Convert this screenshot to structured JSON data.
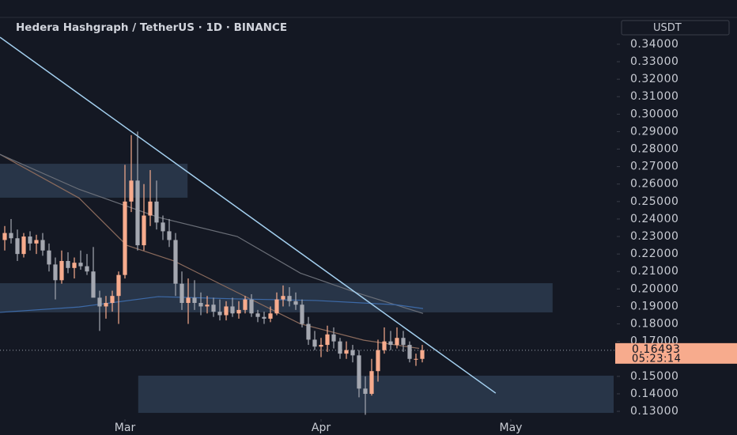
{
  "chart_data": {
    "type": "candlestick",
    "title": "Hedera Hashgraph / TetherUS · 1D · BINANCE",
    "currency": "USDT",
    "up_color": "#f7ab8d",
    "down_color": "#a4a7b0",
    "x": [
      -19,
      -18,
      -17,
      -16,
      -15,
      -14,
      -13,
      -12,
      -11,
      -10,
      -9,
      -8,
      -7,
      -6,
      -5,
      -4,
      -3,
      -2,
      -1,
      0,
      1,
      2,
      3,
      4,
      5,
      6,
      7,
      8,
      9,
      10,
      11,
      12,
      13,
      14,
      15,
      16,
      17,
      18,
      19,
      20,
      21,
      22,
      23,
      24,
      25,
      26,
      27,
      28,
      29,
      30,
      31,
      32,
      33,
      34,
      35,
      36,
      37,
      38,
      39,
      40,
      41,
      42,
      43,
      44,
      45,
      46,
      47
    ],
    "series": [
      {
        "name": "open",
        "values": [
          0.228,
          0.232,
          0.229,
          0.22,
          0.23,
          0.226,
          0.228,
          0.222,
          0.214,
          0.205,
          0.216,
          0.212,
          0.215,
          0.213,
          0.21,
          0.195,
          0.19,
          0.192,
          0.196,
          0.208,
          0.25,
          0.262,
          0.225,
          0.242,
          0.25,
          0.238,
          0.233,
          0.228,
          0.203,
          0.192,
          0.195,
          0.192,
          0.19,
          0.191,
          0.187,
          0.185,
          0.19,
          0.186,
          0.188,
          0.194,
          0.186,
          0.184,
          0.183,
          0.186,
          0.194,
          0.196,
          0.193,
          0.191,
          0.18,
          0.171,
          0.167,
          0.168,
          0.174,
          0.17,
          0.163,
          0.165,
          0.162,
          0.143,
          0.14,
          0.153,
          0.165,
          0.17,
          0.168,
          0.172,
          0.168,
          0.16,
          0.16
        ]
      },
      {
        "name": "high",
        "values": [
          0.236,
          0.24,
          0.234,
          0.232,
          0.233,
          0.231,
          0.232,
          0.226,
          0.218,
          0.222,
          0.221,
          0.218,
          0.222,
          0.22,
          0.224,
          0.199,
          0.196,
          0.199,
          0.21,
          0.271,
          0.288,
          0.29,
          0.26,
          0.268,
          0.262,
          0.242,
          0.24,
          0.232,
          0.21,
          0.206,
          0.205,
          0.198,
          0.196,
          0.195,
          0.194,
          0.193,
          0.195,
          0.193,
          0.196,
          0.197,
          0.188,
          0.187,
          0.19,
          0.198,
          0.202,
          0.201,
          0.198,
          0.194,
          0.184,
          0.176,
          0.172,
          0.179,
          0.178,
          0.172,
          0.17,
          0.168,
          0.165,
          0.15,
          0.16,
          0.171,
          0.178,
          0.176,
          0.178,
          0.176,
          0.17,
          0.163,
          0.168
        ]
      },
      {
        "name": "low",
        "values": [
          0.222,
          0.226,
          0.216,
          0.218,
          0.222,
          0.22,
          0.219,
          0.21,
          0.194,
          0.203,
          0.209,
          0.206,
          0.211,
          0.208,
          0.2,
          0.176,
          0.183,
          0.187,
          0.18,
          0.206,
          0.244,
          0.222,
          0.222,
          0.236,
          0.234,
          0.228,
          0.224,
          0.196,
          0.188,
          0.18,
          0.188,
          0.185,
          0.186,
          0.184,
          0.182,
          0.182,
          0.184,
          0.183,
          0.186,
          0.184,
          0.181,
          0.18,
          0.181,
          0.185,
          0.19,
          0.19,
          0.188,
          0.178,
          0.168,
          0.165,
          0.161,
          0.164,
          0.166,
          0.16,
          0.16,
          0.158,
          0.138,
          0.128,
          0.139,
          0.147,
          0.163,
          0.165,
          0.166,
          0.164,
          0.158,
          0.156,
          0.158
        ]
      },
      {
        "name": "close",
        "values": [
          0.232,
          0.229,
          0.22,
          0.23,
          0.226,
          0.228,
          0.222,
          0.214,
          0.205,
          0.216,
          0.212,
          0.215,
          0.213,
          0.21,
          0.195,
          0.19,
          0.192,
          0.196,
          0.208,
          0.25,
          0.262,
          0.225,
          0.242,
          0.25,
          0.238,
          0.233,
          0.228,
          0.203,
          0.192,
          0.195,
          0.192,
          0.19,
          0.191,
          0.187,
          0.185,
          0.19,
          0.186,
          0.188,
          0.194,
          0.186,
          0.184,
          0.183,
          0.186,
          0.194,
          0.196,
          0.193,
          0.191,
          0.18,
          0.171,
          0.167,
          0.168,
          0.174,
          0.17,
          0.163,
          0.165,
          0.162,
          0.143,
          0.14,
          0.153,
          0.165,
          0.17,
          0.168,
          0.172,
          0.168,
          0.16,
          0.16,
          0.16493
        ]
      }
    ],
    "ma_lines": [
      {
        "color": "#8a6a5c",
        "x": [
          -19.75,
          -7.25,
          0.25,
          7.75,
          17.75,
          27.75,
          37.75,
          46.5
        ],
        "values": [
          0.277,
          0.252,
          0.225,
          0.216,
          0.198,
          0.18,
          0.1707,
          0.166
        ]
      },
      {
        "color": "#6b6f78",
        "x": [
          -19.75,
          -7.25,
          5.25,
          17.75,
          27.75,
          36.5,
          47.125
        ],
        "values": [
          0.277,
          0.257,
          0.241,
          0.23,
          0.209,
          0.198,
          0.186
        ]
      },
      {
        "color": "#3d6aa8",
        "x": [
          -19.75,
          -7.25,
          5.25,
          17.75,
          30.25,
          42.75,
          47.125
        ],
        "values": [
          0.1866,
          0.1897,
          0.1956,
          0.1943,
          0.1934,
          0.191,
          0.1888
        ]
      }
    ],
    "zones": [
      {
        "x": [
          -19.75,
          9.9
        ],
        "y": [
          0.2522,
          0.2716
        ]
      },
      {
        "x": [
          -19.75,
          67.6
        ],
        "y": [
          0.1866,
          0.2033
        ]
      },
      {
        "x": [
          2.1,
          77.25
        ],
        "y": [
          0.1291,
          0.1504
        ]
      }
    ],
    "trendline": {
      "x": [
        -19.75,
        58.6
      ],
      "y": [
        0.344,
        0.1404
      ]
    },
    "last_price": {
      "value": 0.16493,
      "label": "0.16493"
    },
    "countdown": "05:23:14",
    "xlim": [
      -19.75,
      77.75
    ],
    "ylim": [
      0.1255,
      0.3653
    ],
    "xticks": [
      {
        "value": 0,
        "label": "Mar"
      },
      {
        "value": 31,
        "label": "Apr"
      },
      {
        "value": 61,
        "label": "May"
      }
    ],
    "yticks": [
      {
        "value": 0.13,
        "label": "0.13000"
      },
      {
        "value": 0.14,
        "label": "0.14000"
      },
      {
        "value": 0.15,
        "label": "0.15000"
      },
      {
        "value": 0.17,
        "label": "0.17000"
      },
      {
        "value": 0.18,
        "label": "0.18000"
      },
      {
        "value": 0.19,
        "label": "0.19000"
      },
      {
        "value": 0.2,
        "label": "0.20000"
      },
      {
        "value": 0.21,
        "label": "0.21000"
      },
      {
        "value": 0.22,
        "label": "0.22000"
      },
      {
        "value": 0.23,
        "label": "0.23000"
      },
      {
        "value": 0.24,
        "label": "0.24000"
      },
      {
        "value": 0.25,
        "label": "0.25000"
      },
      {
        "value": 0.26,
        "label": "0.26000"
      },
      {
        "value": 0.27,
        "label": "0.27000"
      },
      {
        "value": 0.28,
        "label": "0.28000"
      },
      {
        "value": 0.29,
        "label": "0.29000"
      },
      {
        "value": 0.3,
        "label": "0.30000"
      },
      {
        "value": 0.31,
        "label": "0.31000"
      },
      {
        "value": 0.32,
        "label": "0.32000"
      },
      {
        "value": 0.33,
        "label": "0.33000"
      },
      {
        "value": 0.34,
        "label": "0.34000"
      }
    ]
  }
}
